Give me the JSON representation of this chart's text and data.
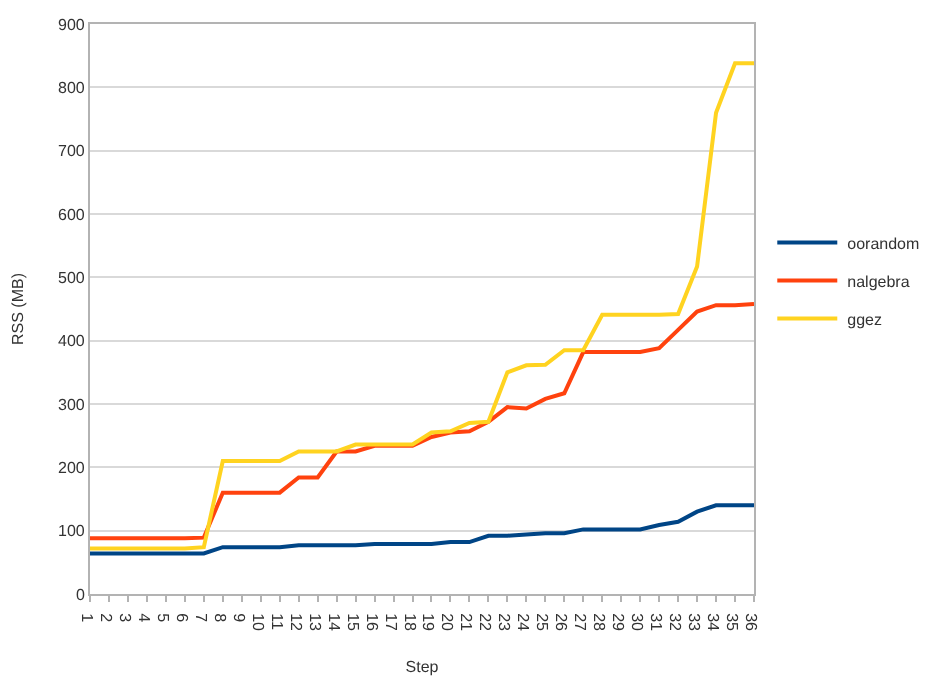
{
  "chart_data": {
    "type": "line",
    "xlabel": "Step",
    "ylabel": "RSS (MB)",
    "categories": [
      "1",
      "2",
      "3",
      "4",
      "5",
      "6",
      "7",
      "8",
      "9",
      "10",
      "11",
      "12",
      "13",
      "14",
      "15",
      "16",
      "17",
      "18",
      "19",
      "20",
      "21",
      "22",
      "23",
      "24",
      "25",
      "26",
      "27",
      "28",
      "29",
      "30",
      "31",
      "32",
      "33",
      "34",
      "35",
      "36"
    ],
    "series": [
      {
        "name": "oorandom",
        "color": "#004586",
        "values": [
          64,
          64,
          64,
          64,
          64,
          64,
          64,
          74,
          74,
          74,
          74,
          77,
          77,
          77,
          77,
          79,
          79,
          79,
          79,
          82,
          82,
          92,
          92,
          94,
          96,
          96,
          102,
          102,
          102,
          102,
          109,
          114,
          130,
          140,
          140,
          140
        ]
      },
      {
        "name": "nalgebra",
        "color": "#ff420e",
        "values": [
          88,
          88,
          88,
          88,
          88,
          88,
          89,
          160,
          160,
          160,
          160,
          184,
          184,
          225,
          225,
          234,
          234,
          234,
          248,
          255,
          257,
          272,
          295,
          293,
          308,
          317,
          382,
          382,
          382,
          382,
          388,
          417,
          446,
          456,
          456,
          458
        ]
      },
      {
        "name": "ggez",
        "color": "#ffd320",
        "values": [
          72,
          72,
          72,
          72,
          72,
          72,
          74,
          210,
          210,
          210,
          210,
          225,
          225,
          225,
          236,
          236,
          236,
          236,
          255,
          257,
          270,
          272,
          350,
          361,
          362,
          385,
          385,
          441,
          441,
          441,
          441,
          442,
          517,
          760,
          838,
          838
        ]
      }
    ],
    "ylim": [
      0,
      900
    ],
    "yticks": [
      0,
      100,
      200,
      300,
      400,
      500,
      600,
      700,
      800,
      900
    ],
    "grid": "y",
    "legend": "right",
    "marker": "none",
    "line_style": "solid"
  }
}
